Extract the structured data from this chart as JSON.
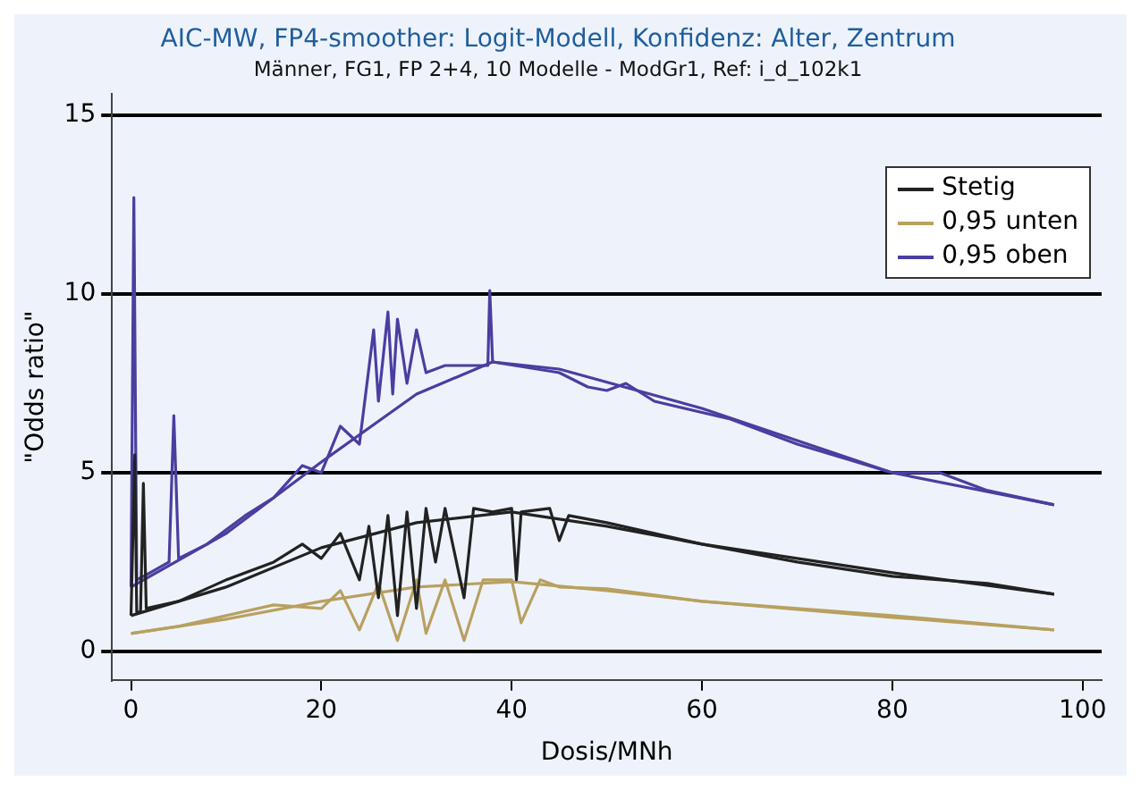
{
  "chart_data": {
    "type": "line",
    "title": "AIC-MW, FP4-smoother: Logit-Modell, Konfidenz: Alter, Zentrum",
    "subtitle": "Männer, FG1, FP 2+4, 10 Modelle - ModGr1, Ref: i_d_102k1",
    "xlabel": "Dosis/MNh",
    "ylabel": "\"Odds ratio\"",
    "xlim": [
      -2,
      102
    ],
    "xticks": [
      0,
      20,
      40,
      60,
      80,
      100
    ],
    "ylim": [
      -0.8,
      15.6
    ],
    "yticks": [
      0,
      5,
      10,
      15
    ],
    "grid": "y",
    "legend": "top right",
    "marker": "none",
    "line_style": "solid",
    "series": [
      {
        "name": "Stetig",
        "color": "#222222",
        "x": [
          0,
          0.4,
          0.6,
          1,
          1.3,
          1.6,
          5,
          10,
          15,
          18,
          20,
          22,
          24,
          25,
          26,
          27,
          28,
          29,
          30,
          31,
          32,
          33,
          35,
          36,
          38,
          40,
          40.5,
          41,
          44,
          45,
          46,
          50,
          60,
          70,
          80,
          90,
          97
        ],
        "values": [
          1.0,
          5.5,
          1.1,
          1.1,
          4.7,
          1.2,
          1.4,
          2.0,
          2.5,
          3.0,
          2.6,
          3.3,
          2.0,
          3.5,
          1.5,
          3.8,
          1.0,
          3.9,
          1.2,
          4.0,
          2.5,
          4.0,
          1.5,
          4.0,
          3.9,
          4.0,
          2.0,
          3.9,
          4.0,
          3.1,
          3.8,
          3.6,
          3.0,
          2.5,
          2.1,
          1.9,
          1.6
        ]
      },
      {
        "name": "0,95 unten",
        "color": "#b8a060",
        "x": [
          0,
          5,
          10,
          15,
          20,
          22,
          24,
          26,
          28,
          30,
          31,
          33,
          35,
          37,
          40,
          41,
          43,
          45,
          50,
          60,
          80,
          97
        ],
        "values": [
          0.5,
          0.7,
          1.0,
          1.3,
          1.2,
          1.7,
          0.6,
          1.9,
          0.3,
          2.0,
          0.5,
          2.0,
          0.3,
          2.0,
          2.0,
          0.8,
          2.0,
          1.8,
          1.75,
          1.4,
          1.0,
          0.6
        ]
      },
      {
        "name": "0,95 oben",
        "color": "#4a3ea0",
        "x": [
          0,
          0.3,
          0.6,
          2,
          4,
          4.5,
          5,
          8,
          12,
          15,
          18,
          20,
          22,
          24,
          25.5,
          26,
          27,
          27.5,
          28,
          29,
          30,
          31,
          33,
          37.5,
          37.7,
          38,
          45,
          48,
          50,
          52,
          55,
          63,
          70,
          80,
          85,
          90,
          97
        ],
        "values": [
          1.8,
          12.7,
          2.0,
          2.2,
          2.5,
          6.6,
          2.6,
          3.0,
          3.8,
          4.3,
          5.2,
          5.0,
          6.3,
          5.8,
          9.0,
          7.0,
          9.5,
          7.2,
          9.3,
          7.5,
          9.0,
          7.8,
          8.0,
          8.0,
          10.1,
          8.1,
          7.8,
          7.4,
          7.3,
          7.5,
          7.0,
          6.5,
          5.8,
          5.0,
          5.0,
          4.5,
          4.1
        ]
      },
      {
        "color": "#222222",
        "x": [
          0,
          10,
          20,
          30,
          40,
          50,
          60,
          80,
          97
        ],
        "values": [
          1.0,
          1.8,
          2.9,
          3.6,
          3.9,
          3.5,
          3.0,
          2.2,
          1.6
        ]
      },
      {
        "color": "#b8a060",
        "x": [
          0,
          10,
          20,
          30,
          40,
          50,
          60,
          80,
          97
        ],
        "values": [
          0.5,
          0.9,
          1.4,
          1.8,
          1.95,
          1.7,
          1.4,
          0.95,
          0.6
        ]
      },
      {
        "color": "#4a3ea0",
        "x": [
          0,
          10,
          20,
          30,
          38,
          45,
          60,
          80,
          97
        ],
        "values": [
          1.8,
          3.3,
          5.3,
          7.2,
          8.1,
          7.9,
          6.8,
          5.0,
          4.1
        ]
      }
    ]
  }
}
